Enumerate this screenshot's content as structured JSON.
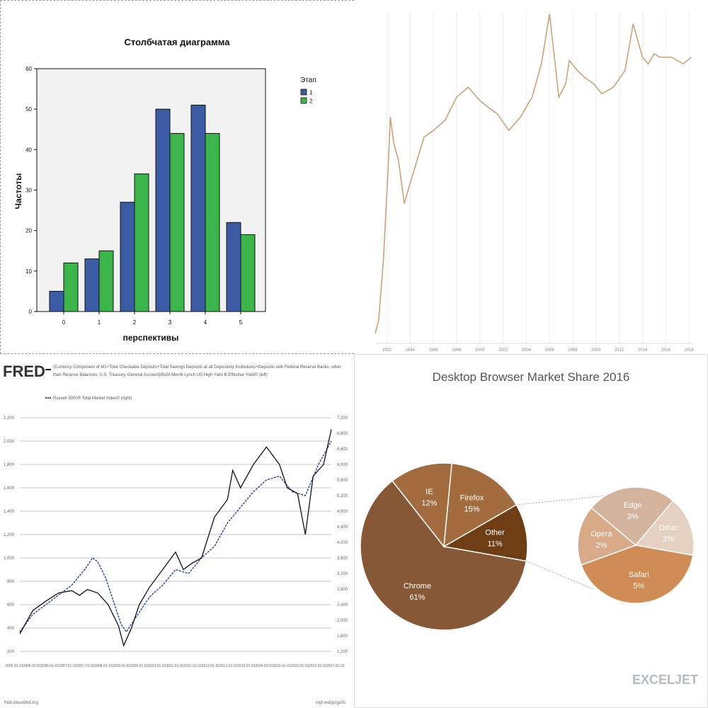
{
  "chart_data": [
    {
      "type": "bar",
      "title": "Столбчатая диаграмма",
      "xlabel": "перспективы",
      "ylabel": "Частоты",
      "categories": [
        "0",
        "1",
        "2",
        "3",
        "4",
        "5"
      ],
      "ylim": [
        0,
        60
      ],
      "yticks": [
        "0",
        "10",
        "20",
        "30",
        "40",
        "50",
        "60"
      ],
      "legend_title": "Этап",
      "legend_position": "right",
      "series": [
        {
          "name": "1",
          "color": "#3b5ba5",
          "values": [
            5,
            13,
            27,
            50,
            51,
            22
          ]
        },
        {
          "name": "2",
          "color": "#3cb54a",
          "values": [
            12,
            15,
            34,
            44,
            44,
            19
          ]
        }
      ]
    },
    {
      "type": "line",
      "color": "#c9a47a",
      "xticks": [
        "1992",
        "1994",
        "1996",
        "1998",
        "2000",
        "2002",
        "2004",
        "2006",
        "2008",
        "2010",
        "2012",
        "2014",
        "2016",
        "2018"
      ],
      "x": [
        1991,
        1991.3,
        1991.7,
        1992.1,
        1992.3,
        1992.6,
        1993.0,
        1993.5,
        1994.0,
        1994.6,
        1995.2,
        1996.0,
        1997.0,
        1998.0,
        1999.0,
        2000.0,
        2000.7,
        2001.5,
        2002.5,
        2003.5,
        2004.5,
        2005.3,
        2006.0,
        2006.8,
        2007.4,
        2007.7,
        2008.4,
        2009.0,
        2009.8,
        2010.5,
        2011.5,
        2012.5,
        2013.2,
        2014.0,
        2014.5,
        2015.0,
        2015.5,
        2016.5,
        2017.5,
        2018.2
      ],
      "values": [
        0.03,
        0.07,
        0.25,
        0.52,
        0.68,
        0.6,
        0.55,
        0.42,
        0.48,
        0.55,
        0.62,
        0.64,
        0.67,
        0.74,
        0.77,
        0.73,
        0.71,
        0.69,
        0.64,
        0.68,
        0.74,
        0.84,
        0.99,
        0.74,
        0.78,
        0.85,
        0.82,
        0.8,
        0.78,
        0.75,
        0.77,
        0.82,
        0.96,
        0.86,
        0.84,
        0.87,
        0.86,
        0.86,
        0.84,
        0.86
      ],
      "ylabel": ""
    },
    {
      "type": "line",
      "logo": "FRED",
      "legend": [
        "(Currency Component of M1+Total Checkable Deposits+Total Savings Deposits at all Depository Institutions+Deposits with Federal Reserve Banks, other than Reserve Balances: U.S. Treasury, General Account)/BofA Merrill Lynch US High Yield B Effective Yield© (left)",
        "Russell 3000® Total Market Index© (right)"
      ],
      "left_yticks": [
        "200",
        "400",
        "600",
        "800",
        "1,000",
        "1,200",
        "1,400",
        "1,600",
        "1,800",
        "2,000",
        "2,200"
      ],
      "right_yticks": [
        "1,200",
        "1,600",
        "2,000",
        "2,400",
        "2,800",
        "3,200",
        "3,600",
        "4,000",
        "4,400",
        "4,800",
        "5,200",
        "5,600",
        "6,000",
        "6,400",
        "6,800",
        "7,200"
      ],
      "xticks": [
        "2005-01-01",
        "2006-01-01",
        "2006-01-01",
        "2007-01-01",
        "2007-01-01",
        "2008-01-01",
        "2009-01-01",
        "2009-01-01",
        "2010-01-01",
        "2011-01-01",
        "2011-01-01",
        "2012-01-01",
        "2013-01-01",
        "2013-01-01",
        "2014-01-01",
        "2015-01-01",
        "2015-01-01",
        "2016-01-01",
        "2017-01-01"
      ],
      "source_left": "fred.stlouisfed.org",
      "source_right": "myf.red/g/cgoXt",
      "series": [
        {
          "name": "left",
          "color": "#111111",
          "x": [
            2005.0,
            2005.5,
            2006.0,
            2006.5,
            2007.0,
            2007.3,
            2007.6,
            2008.0,
            2008.4,
            2008.8,
            2009.0,
            2009.3,
            2009.6,
            2010.0,
            2010.5,
            2011.0,
            2011.3,
            2011.6,
            2012.0,
            2012.5,
            2013.0,
            2013.2,
            2013.5,
            2014.0,
            2014.5,
            2015.0,
            2015.3,
            2015.7,
            2016.0,
            2016.3,
            2016.7,
            2017.0
          ],
          "values": [
            350,
            550,
            630,
            700,
            720,
            680,
            730,
            700,
            600,
            420,
            250,
            400,
            600,
            750,
            900,
            1050,
            900,
            950,
            1000,
            1350,
            1500,
            1750,
            1600,
            1800,
            1950,
            1800,
            1600,
            1550,
            1200,
            1700,
            1800,
            2100
          ]
        },
        {
          "name": "right",
          "color": "#2b3f9e",
          "x": [
            2005.0,
            2005.5,
            2006.0,
            2006.5,
            2007.0,
            2007.5,
            2007.8,
            2008.0,
            2008.3,
            2008.6,
            2008.9,
            2009.1,
            2009.5,
            2010.0,
            2010.5,
            2011.0,
            2011.5,
            2012.0,
            2012.5,
            2013.0,
            2013.5,
            2014.0,
            2014.5,
            2015.0,
            2015.5,
            2016.0,
            2016.5,
            2017.0
          ],
          "values": [
            1700,
            2150,
            2400,
            2650,
            2900,
            3300,
            3600,
            3500,
            3100,
            2500,
            1900,
            1700,
            2100,
            2600,
            2900,
            3300,
            3200,
            3600,
            3900,
            4500,
            4900,
            5300,
            5600,
            5700,
            5300,
            5200,
            6000,
            6600
          ]
        }
      ]
    },
    {
      "type": "pie",
      "title": "Desktop Browser Market Share 2016",
      "logo": "EXCELJET",
      "slices": [
        {
          "label": "Chrome",
          "value": 61,
          "display": "61%",
          "color": "#875836"
        },
        {
          "label": "IE",
          "value": 12,
          "display": "12%",
          "color": "#a36c3f"
        },
        {
          "label": "Firefox",
          "value": 15,
          "display": "15%",
          "color": "#a36c3f"
        },
        {
          "label": "Other",
          "value": 11,
          "display": "11%",
          "color": "#6e3d14"
        }
      ],
      "breakout": [
        {
          "label": "Safari",
          "value": 5,
          "display": "5%",
          "color": "#cf8c55"
        },
        {
          "label": "Opera",
          "value": 2,
          "display": "2%",
          "color": "#d8aa88"
        },
        {
          "label": "Edge",
          "value": 3,
          "display": "3%",
          "color": "#d3b39b"
        },
        {
          "label": "Other",
          "value": 2,
          "display": "2%",
          "color": "#e5d1c2"
        }
      ]
    }
  ]
}
